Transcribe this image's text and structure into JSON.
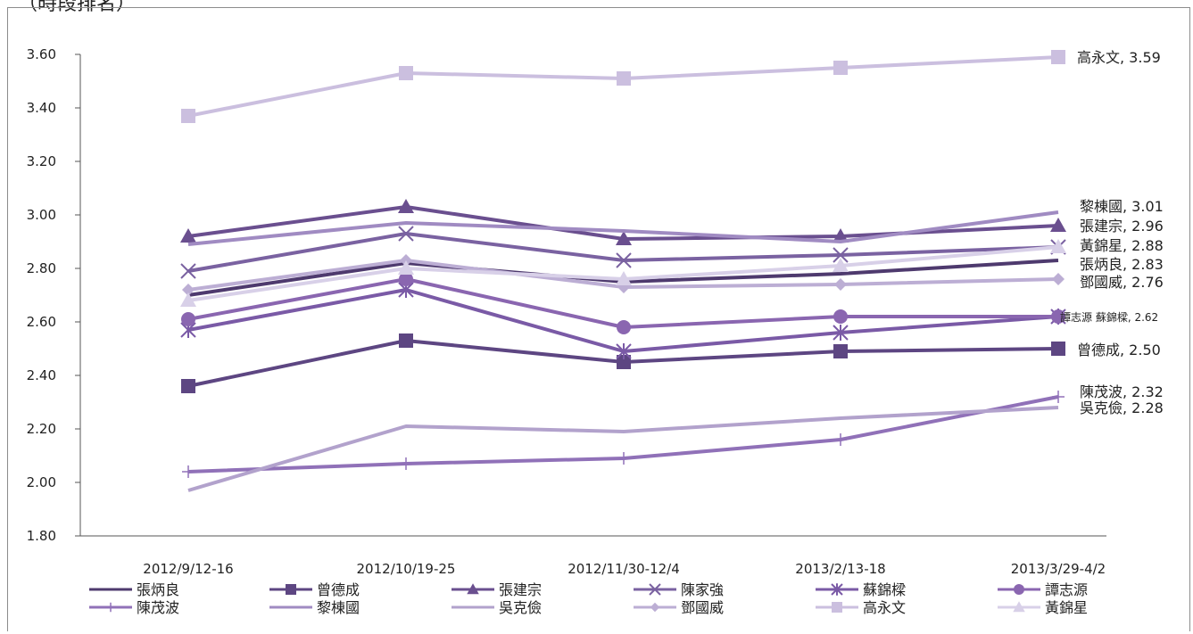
{
  "corner_note": "（時段排名）",
  "chart_data": {
    "type": "line",
    "categories": [
      "2012/9/12-16",
      "2012/10/19-25",
      "2012/11/30-12/4",
      "2013/2/13-18",
      "2013/3/29-4/2"
    ],
    "ylim": [
      1.8,
      3.6
    ],
    "yticks": [
      "1.80",
      "2.00",
      "2.20",
      "2.40",
      "2.60",
      "2.80",
      "3.00",
      "3.20",
      "3.40",
      "3.60"
    ],
    "legend_position": "bottom",
    "series": [
      {
        "name": "張炳良",
        "values": [
          2.7,
          2.82,
          2.75,
          2.78,
          2.83
        ],
        "color": "#4e3a6e",
        "marker": "none",
        "end_label": "張炳良, 2.83"
      },
      {
        "name": "曾德成",
        "values": [
          2.36,
          2.53,
          2.45,
          2.49,
          2.5
        ],
        "color": "#5d4682",
        "marker": "square",
        "end_label": "曾德成, 2.50"
      },
      {
        "name": "張建宗",
        "values": [
          2.92,
          3.03,
          2.91,
          2.92,
          2.96
        ],
        "color": "#6a4f8f",
        "marker": "triangle",
        "end_label": "張建宗, 2.96"
      },
      {
        "name": "陳家強",
        "values": [
          2.79,
          2.93,
          2.83,
          2.85,
          2.88
        ],
        "color": "#7a62a1",
        "marker": "x",
        "end_label": ""
      },
      {
        "name": "蘇錦樑",
        "values": [
          2.57,
          2.72,
          2.49,
          2.56,
          2.62
        ],
        "color": "#7a5aa6",
        "marker": "star",
        "end_label": ""
      },
      {
        "name": "譚志源",
        "values": [
          2.61,
          2.76,
          2.58,
          2.62,
          2.62
        ],
        "color": "#8a66b0",
        "marker": "circle",
        "end_label": "譚志源 蘇錦樑, 2.62"
      },
      {
        "name": "陳茂波",
        "values": [
          2.04,
          2.07,
          2.09,
          2.16,
          2.32
        ],
        "color": "#9071b8",
        "marker": "plus",
        "end_label": "陳茂波, 2.32"
      },
      {
        "name": "黎棟國",
        "values": [
          2.89,
          2.97,
          2.94,
          2.9,
          3.01
        ],
        "color": "#a08bc2",
        "marker": "none",
        "end_label": "黎棟國, 3.01"
      },
      {
        "name": "吳克儉",
        "values": [
          1.97,
          2.21,
          2.19,
          2.24,
          2.28
        ],
        "color": "#b2a2cc",
        "marker": "none",
        "end_label": "吳克儉, 2.28"
      },
      {
        "name": "鄧國威",
        "values": [
          2.72,
          2.83,
          2.73,
          2.74,
          2.76
        ],
        "color": "#bcaed4",
        "marker": "diamond",
        "end_label": "鄧國威, 2.76"
      },
      {
        "name": "高永文",
        "values": [
          3.37,
          3.53,
          3.51,
          3.55,
          3.59
        ],
        "color": "#cbbfdf",
        "marker": "square",
        "end_label": "高永文, 3.59"
      },
      {
        "name": "黃錦星",
        "values": [
          2.68,
          2.8,
          2.76,
          2.81,
          2.88
        ],
        "color": "#d8d0e8",
        "marker": "triangle",
        "end_label": "黃錦星, 2.88"
      }
    ]
  }
}
